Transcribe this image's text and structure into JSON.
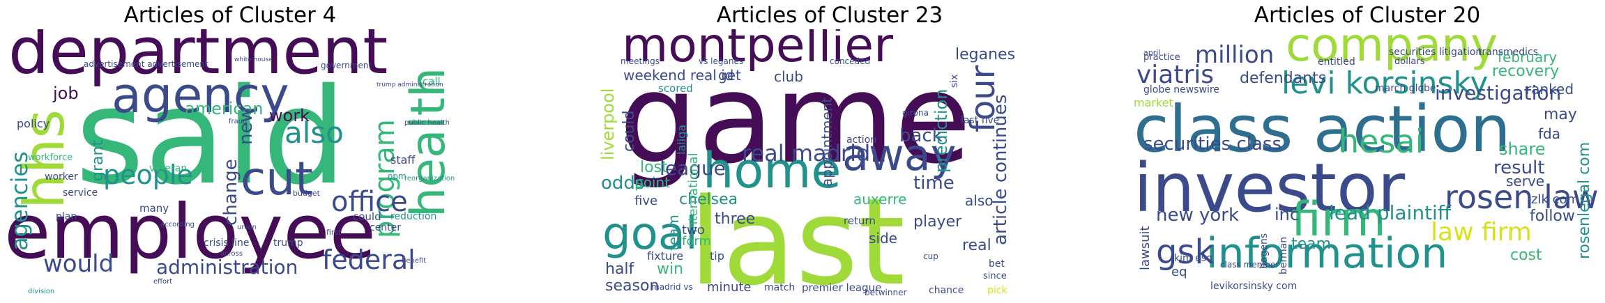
{
  "colors": {
    "purple": "#450d56",
    "indigo": "#3b4a8a",
    "blue": "#2e6e8e",
    "teal": "#21918c",
    "green": "#35b779",
    "lime": "#a0da39",
    "yellow": "#d7e21a"
  },
  "panels": [
    {
      "title": "Articles of Cluster 4",
      "words": [
        {
          "t": "department",
          "c": "purple",
          "r": 0
        },
        {
          "t": "said",
          "c": "green",
          "r": 0
        },
        {
          "t": "employee",
          "c": "purple",
          "r": 0
        },
        {
          "t": "agency",
          "c": "indigo",
          "r": 0
        },
        {
          "t": "hhs",
          "c": "lime",
          "r": -90
        },
        {
          "t": "cut",
          "c": "indigo",
          "r": 0
        },
        {
          "t": "health",
          "c": "green",
          "r": -90
        },
        {
          "t": "agencies",
          "c": "teal",
          "r": -90
        },
        {
          "t": "people",
          "c": "teal",
          "r": 0
        },
        {
          "t": "also",
          "c": "teal",
          "r": 0
        },
        {
          "t": "program",
          "c": "green",
          "r": -90
        },
        {
          "t": "office",
          "c": "indigo",
          "r": 0
        },
        {
          "t": "federal",
          "c": "indigo",
          "r": 0
        },
        {
          "t": "would",
          "c": "indigo",
          "r": 0
        },
        {
          "t": "administration",
          "c": "indigo",
          "r": 0
        },
        {
          "t": "american",
          "c": "green",
          "r": 0
        },
        {
          "t": "work",
          "c": "purple",
          "r": 0
        },
        {
          "t": "new",
          "c": "indigo",
          "r": -90
        },
        {
          "t": "change",
          "c": "indigo",
          "r": -90
        },
        {
          "t": "grant",
          "c": "teal",
          "r": -90
        },
        {
          "t": "job",
          "c": "purple",
          "r": 0
        },
        {
          "t": "policy",
          "c": "indigo",
          "r": 0
        },
        {
          "t": "advertisement advertisement",
          "c": "indigo",
          "r": 0
        },
        {
          "t": "government",
          "c": "indigo",
          "r": 0
        },
        {
          "t": "call",
          "c": "green",
          "r": 0
        },
        {
          "t": "veteran",
          "c": "green",
          "r": 0
        },
        {
          "t": "many",
          "c": "indigo",
          "r": 0
        },
        {
          "t": "staff",
          "c": "indigo",
          "r": 0
        },
        {
          "t": "could",
          "c": "indigo",
          "r": 0
        },
        {
          "t": "reduction",
          "c": "teal",
          "r": 0
        },
        {
          "t": "center",
          "c": "indigo",
          "r": 0
        },
        {
          "t": "service",
          "c": "indigo",
          "r": 0
        },
        {
          "t": "plan",
          "c": "indigo",
          "r": 0
        },
        {
          "t": "worker",
          "c": "indigo",
          "r": 0
        },
        {
          "t": "workforce",
          "c": "green",
          "r": 0
        },
        {
          "t": "crisis line",
          "c": "indigo",
          "r": 0
        },
        {
          "t": "trump",
          "c": "indigo",
          "r": 0
        },
        {
          "t": "division",
          "c": "teal",
          "r": 0
        },
        {
          "t": "research",
          "c": "indigo",
          "r": 0
        },
        {
          "t": "opm",
          "c": "teal",
          "r": 0
        },
        {
          "t": "first",
          "c": "indigo",
          "r": 0
        },
        {
          "t": "budget",
          "c": "indigo",
          "r": 0
        },
        {
          "t": "public health",
          "c": "indigo",
          "r": 0
        },
        {
          "t": "reorganization",
          "c": "teal",
          "r": 0
        },
        {
          "t": "white house",
          "c": "indigo",
          "r": 0
        },
        {
          "t": "trump administration",
          "c": "indigo",
          "r": 0
        },
        {
          "t": "fraud",
          "c": "indigo",
          "r": 0
        },
        {
          "t": "according",
          "c": "indigo",
          "r": 0
        },
        {
          "t": "union",
          "c": "indigo",
          "r": 0
        },
        {
          "t": "across",
          "c": "indigo",
          "r": 0
        },
        {
          "t": "effort",
          "c": "indigo",
          "r": 0
        },
        {
          "t": "benefit",
          "c": "indigo",
          "r": 0
        }
      ]
    },
    {
      "title": "Articles of Cluster 23",
      "words": [
        {
          "t": "montpellier",
          "c": "purple",
          "r": 0
        },
        {
          "t": "game",
          "c": "purple",
          "r": 0
        },
        {
          "t": "last",
          "c": "lime",
          "r": 0
        },
        {
          "t": "home",
          "c": "teal",
          "r": 0
        },
        {
          "t": "away",
          "c": "indigo",
          "r": 0
        },
        {
          "t": "goal",
          "c": "teal",
          "r": 0
        },
        {
          "t": "four",
          "c": "indigo",
          "r": -90
        },
        {
          "t": "real madrid",
          "c": "indigo",
          "r": 0
        },
        {
          "t": "league",
          "c": "indigo",
          "r": 0
        },
        {
          "t": "article continues",
          "c": "indigo",
          "r": -90
        },
        {
          "t": "leganes",
          "c": "indigo",
          "r": 0
        },
        {
          "t": "weekend real id",
          "c": "indigo",
          "r": 0
        },
        {
          "t": "get",
          "c": "indigo",
          "r": 0
        },
        {
          "t": "club",
          "c": "indigo",
          "r": 0
        },
        {
          "t": "liverpool",
          "c": "lime",
          "r": -90
        },
        {
          "t": "could",
          "c": "indigo",
          "r": -90
        },
        {
          "t": "odds",
          "c": "teal",
          "r": 0
        },
        {
          "t": "lost",
          "c": "green",
          "r": 0
        },
        {
          "t": "point",
          "c": "green",
          "r": 0
        },
        {
          "t": "chelsea",
          "c": "teal",
          "r": 0
        },
        {
          "t": "three",
          "c": "indigo",
          "r": 0
        },
        {
          "t": "time",
          "c": "indigo",
          "r": 0
        },
        {
          "t": "back",
          "c": "indigo",
          "r": 0
        },
        {
          "t": "player",
          "c": "indigo",
          "r": 0
        },
        {
          "t": "side",
          "c": "indigo",
          "r": 0
        },
        {
          "t": "real",
          "c": "indigo",
          "r": 0
        },
        {
          "t": "also",
          "c": "indigo",
          "r": 0
        },
        {
          "t": "win",
          "c": "green",
          "r": 0
        },
        {
          "t": "half",
          "c": "indigo",
          "r": 0
        },
        {
          "t": "season",
          "c": "indigo",
          "r": 0
        },
        {
          "t": "form",
          "c": "green",
          "r": 0
        },
        {
          "t": "fixture",
          "c": "indigo",
          "r": 0
        },
        {
          "t": "tip",
          "c": "indigo",
          "r": 0
        },
        {
          "t": "minute",
          "c": "indigo",
          "r": 0
        },
        {
          "t": "match",
          "c": "indigo",
          "r": 0
        },
        {
          "t": "premier league",
          "c": "indigo",
          "r": 0
        },
        {
          "t": "auxerre",
          "c": "green",
          "r": 0
        },
        {
          "t": "team",
          "c": "teal",
          "r": -90
        },
        {
          "t": "international",
          "c": "green",
          "r": -90
        },
        {
          "t": "prediction",
          "c": "teal",
          "r": -90
        },
        {
          "t": "five",
          "c": "indigo",
          "r": 0
        },
        {
          "t": "two",
          "c": "indigo",
          "r": 0
        },
        {
          "t": "scored",
          "c": "teal",
          "r": 0
        },
        {
          "t": "vs leganes",
          "c": "indigo",
          "r": 0
        },
        {
          "t": "conceded",
          "c": "indigo",
          "r": 0
        },
        {
          "t": "appointment",
          "c": "indigo",
          "r": -90
        },
        {
          "t": "return",
          "c": "indigo",
          "r": 0
        },
        {
          "t": "action",
          "c": "indigo",
          "r": 0
        },
        {
          "t": "chance",
          "c": "indigo",
          "r": 0
        },
        {
          "t": "pick",
          "c": "yellow",
          "r": 0
        },
        {
          "t": "since",
          "c": "indigo",
          "r": 0
        },
        {
          "t": "bet",
          "c": "indigo",
          "r": 0
        },
        {
          "t": "cup",
          "c": "indigo",
          "r": 0
        },
        {
          "t": "laliga",
          "c": "teal",
          "r": -90
        },
        {
          "t": "betwinner",
          "c": "indigo",
          "r": 0
        },
        {
          "t": "madrid vs",
          "c": "indigo",
          "r": 0
        },
        {
          "t": "meetings",
          "c": "indigo",
          "r": 0
        },
        {
          "t": "girona",
          "c": "indigo",
          "r": 0
        },
        {
          "t": "last five",
          "c": "indigo",
          "r": 0
        },
        {
          "t": "six",
          "c": "indigo",
          "r": -90
        }
      ]
    },
    {
      "title": "Articles of Cluster 20",
      "words": [
        {
          "t": "company",
          "c": "lime",
          "r": 0
        },
        {
          "t": "class action",
          "c": "blue",
          "r": 0
        },
        {
          "t": "investor",
          "c": "indigo",
          "r": 0
        },
        {
          "t": "firm",
          "c": "green",
          "r": 0
        },
        {
          "t": "information",
          "c": "teal",
          "r": 0
        },
        {
          "t": "levi korsinsky",
          "c": "teal",
          "r": 0
        },
        {
          "t": "viatris",
          "c": "indigo",
          "r": 0
        },
        {
          "t": "million",
          "c": "indigo",
          "r": 0
        },
        {
          "t": "rosen law",
          "c": "indigo",
          "r": 0
        },
        {
          "t": "law firm",
          "c": "yellow",
          "r": 0
        },
        {
          "t": "securities class",
          "c": "indigo",
          "r": 0
        },
        {
          "t": "hesai",
          "c": "green",
          "r": 0
        },
        {
          "t": "investigation",
          "c": "indigo",
          "r": 0
        },
        {
          "t": "defendants",
          "c": "indigo",
          "r": 0
        },
        {
          "t": "recovery",
          "c": "green",
          "r": 0
        },
        {
          "t": "february",
          "c": "green",
          "r": 0
        },
        {
          "t": "lead plaintiff",
          "c": "teal",
          "r": 0
        },
        {
          "t": "gsk",
          "c": "indigo",
          "r": 0
        },
        {
          "t": "new york",
          "c": "indigo",
          "r": 0
        },
        {
          "t": "inc",
          "c": "indigo",
          "r": 0
        },
        {
          "t": "result",
          "c": "indigo",
          "r": 0
        },
        {
          "t": "share",
          "c": "green",
          "r": 0
        },
        {
          "t": "serve",
          "c": "indigo",
          "r": 0
        },
        {
          "t": "fda",
          "c": "indigo",
          "r": 0
        },
        {
          "t": "may",
          "c": "indigo",
          "r": 0
        },
        {
          "t": "ranked",
          "c": "indigo",
          "r": 0
        },
        {
          "t": "market",
          "c": "lime",
          "r": 0
        },
        {
          "t": "team",
          "c": "teal",
          "r": 0
        },
        {
          "t": "cost",
          "c": "green",
          "r": 0
        },
        {
          "t": "follow",
          "c": "indigo",
          "r": 0
        },
        {
          "t": "zlk com",
          "c": "indigo",
          "r": 0
        },
        {
          "t": "eq",
          "c": "indigo",
          "r": 0
        },
        {
          "t": "rosenlegal com",
          "c": "teal",
          "r": -90
        },
        {
          "t": "lawsuit",
          "c": "indigo",
          "r": -90
        },
        {
          "t": "march globe",
          "c": "indigo",
          "r": 0
        },
        {
          "t": "globe newswire",
          "c": "indigo",
          "r": 0
        },
        {
          "t": "securities litigation",
          "c": "indigo",
          "r": 0
        },
        {
          "t": "transmedics",
          "c": "indigo",
          "r": 0
        },
        {
          "t": "entitled",
          "c": "indigo",
          "r": 0
        },
        {
          "t": "dollars",
          "c": "indigo",
          "r": 0
        },
        {
          "t": "practice",
          "c": "indigo",
          "r": 0
        },
        {
          "t": "april",
          "c": "indigo",
          "r": 0
        },
        {
          "t": "kim esq",
          "c": "indigo",
          "r": 0
        },
        {
          "t": "levikorsinsky com",
          "c": "indigo",
          "r": 0
        },
        {
          "t": "class member",
          "c": "indigo",
          "r": 0
        },
        {
          "t": "berman",
          "c": "indigo",
          "r": -90
        },
        {
          "t": "hagens",
          "c": "indigo",
          "r": -90
        }
      ]
    }
  ]
}
